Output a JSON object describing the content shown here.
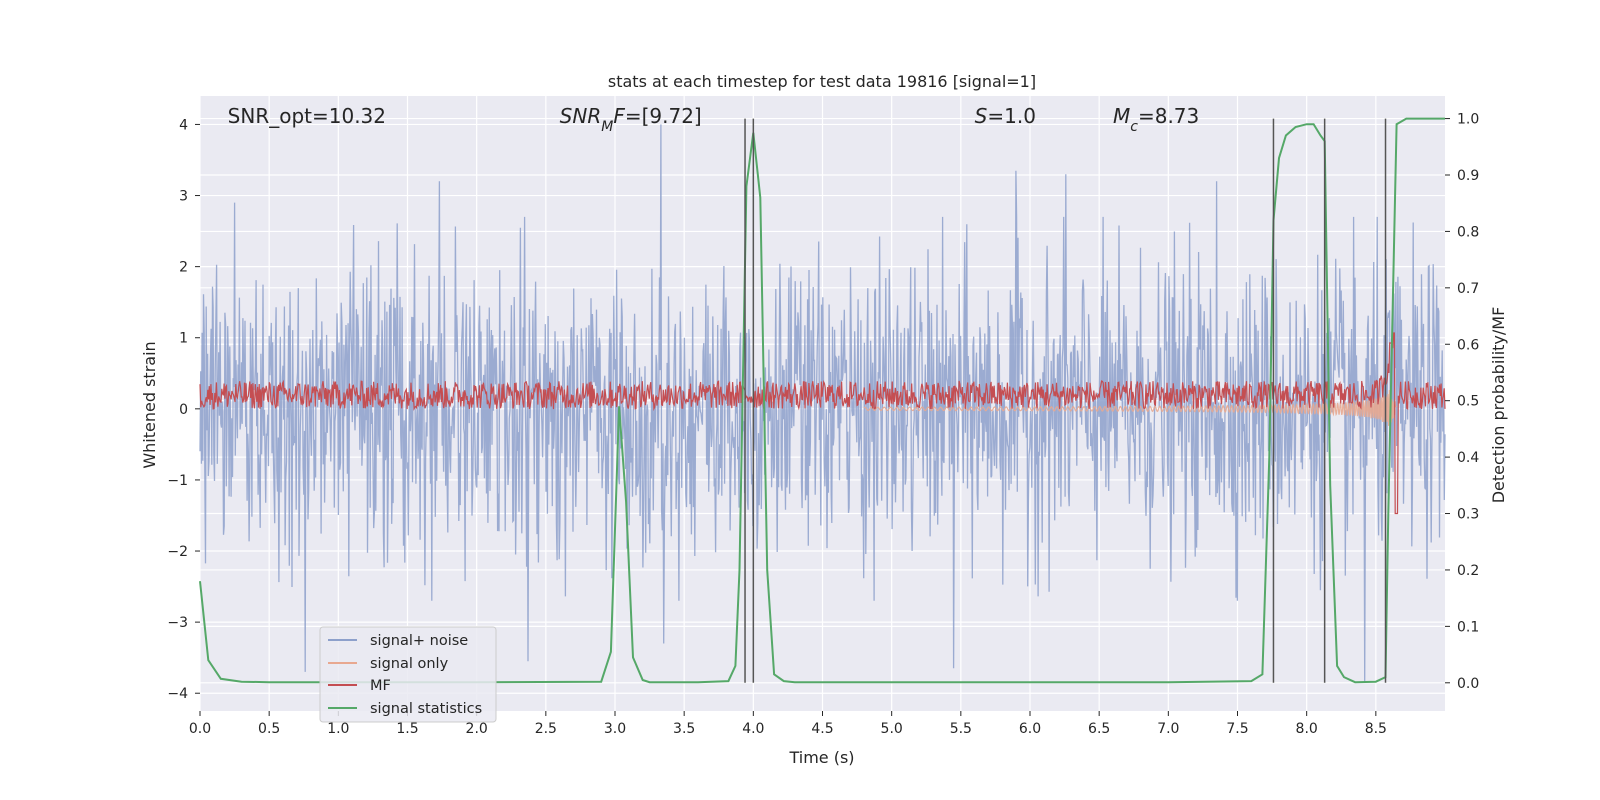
{
  "chart_data": {
    "type": "line",
    "title": "stats at each timestep for test data 19816 [signal=1]",
    "xlabel": "Time (s)",
    "ylabel_left": "Whitened strain",
    "ylabel_right": "Detection probability/MF",
    "xlim": [
      0,
      9
    ],
    "ylim_left": [
      -4.25,
      4.4
    ],
    "ylim_right": [
      -0.05,
      1.04
    ],
    "x_ticks": [
      0.0,
      0.5,
      1.0,
      1.5,
      2.0,
      2.5,
      3.0,
      3.5,
      4.0,
      4.5,
      5.0,
      5.5,
      6.0,
      6.5,
      7.0,
      7.5,
      8.0,
      8.5
    ],
    "x_tick_labels": [
      "0.0",
      "0.5",
      "1.0",
      "1.5",
      "2.0",
      "2.5",
      "3.0",
      "3.5",
      "4.0",
      "4.5",
      "5.0",
      "5.5",
      "6.0",
      "6.5",
      "7.0",
      "7.5",
      "8.0",
      "8.5"
    ],
    "left_ticks": [
      -4,
      -3,
      -2,
      -1,
      0,
      1,
      2,
      3,
      4
    ],
    "left_tick_labels": [
      "−4",
      "−3",
      "−2",
      "−1",
      "0",
      "1",
      "2",
      "3",
      "4"
    ],
    "right_ticks": [
      0.0,
      0.1,
      0.2,
      0.3,
      0.4,
      0.5,
      0.6,
      0.7,
      0.8,
      0.9,
      1.0
    ],
    "right_tick_labels": [
      "0.0",
      "0.1",
      "0.2",
      "0.3",
      "0.4",
      "0.5",
      "0.6",
      "0.7",
      "0.8",
      "0.9",
      "1.0"
    ],
    "grid": true,
    "annotations": [
      {
        "id": "snr-opt",
        "parts": [
          {
            "t": "SNR_opt=10.32",
            "i": false
          }
        ],
        "x": 0.2,
        "y": 4.12
      },
      {
        "id": "snr-mf",
        "parts": [
          {
            "t": "SNR",
            "i": true
          },
          {
            "t": "M",
            "i": true,
            "sub": true
          },
          {
            "t": "F",
            "i": true
          },
          {
            "t": "=[9.72]",
            "i": false
          }
        ],
        "x": 2.6,
        "y": 4.12
      },
      {
        "id": "s-value",
        "parts": [
          {
            "t": "S",
            "i": true
          },
          {
            "t": "=1.0",
            "i": false
          }
        ],
        "x": 5.6,
        "y": 4.12
      },
      {
        "id": "mc-value",
        "parts": [
          {
            "t": "M",
            "i": true
          },
          {
            "t": "c",
            "i": true,
            "sub": true
          },
          {
            "t": "=8.73",
            "i": false
          }
        ],
        "x": 6.6,
        "y": 4.12
      }
    ],
    "vlines": [
      3.94,
      4.0,
      7.76,
      8.13,
      8.57
    ],
    "vline_range": [
      0.0,
      1.0
    ],
    "series": [
      {
        "name": "signal+ noise",
        "axis": "left",
        "color": "#8da0cb",
        "kind": "noise",
        "x_range": [
          0,
          9
        ],
        "n": 1800,
        "sigma": 1.0,
        "peaks": [
          {
            "x": 3.33,
            "y": 4.0
          },
          {
            "x": 0.25,
            "y": 2.9
          },
          {
            "x": 1.73,
            "y": 3.2
          },
          {
            "x": 5.9,
            "y": 3.35
          },
          {
            "x": 6.26,
            "y": 3.3
          },
          {
            "x": 7.35,
            "y": 3.2
          },
          {
            "x": 2.37,
            "y": -3.55
          },
          {
            "x": 0.76,
            "y": -3.7
          },
          {
            "x": 5.45,
            "y": -3.65
          },
          {
            "x": 8.42,
            "y": -3.85
          },
          {
            "x": 3.35,
            "y": -3.3
          }
        ]
      },
      {
        "name": "signal only",
        "axis": "left",
        "color": "#e8a890",
        "kind": "chirp",
        "t_start": 4.8,
        "t_merge": 8.6,
        "amp_max": 1.35
      },
      {
        "name": "MF",
        "axis": "right",
        "color": "#c44e52",
        "kind": "mf",
        "base": 0.5,
        "noise_amp": 0.025,
        "peak_x": 8.63,
        "peak_y": 0.62,
        "low_y": 0.3
      },
      {
        "name": "signal statistics",
        "axis": "right",
        "color": "#55a868",
        "kind": "line",
        "x": [
          0.0,
          0.06,
          0.15,
          0.3,
          0.5,
          1.0,
          2.0,
          2.9,
          2.97,
          3.03,
          3.08,
          3.13,
          3.2,
          3.25,
          3.33,
          3.6,
          3.82,
          3.87,
          3.9,
          3.95,
          4.0,
          4.05,
          4.1,
          4.15,
          4.22,
          4.3,
          5.0,
          6.0,
          7.0,
          7.6,
          7.68,
          7.73,
          7.76,
          7.8,
          7.85,
          7.92,
          8.0,
          8.05,
          8.1,
          8.13,
          8.17,
          8.22,
          8.27,
          8.35,
          8.5,
          8.57,
          8.59,
          8.65,
          8.72,
          8.8,
          9.0
        ],
        "y": [
          0.18,
          0.04,
          0.007,
          0.002,
          0.001,
          0.001,
          0.001,
          0.002,
          0.055,
          0.49,
          0.32,
          0.045,
          0.005,
          0.001,
          0.001,
          0.001,
          0.003,
          0.03,
          0.2,
          0.88,
          0.975,
          0.86,
          0.2,
          0.015,
          0.003,
          0.001,
          0.001,
          0.001,
          0.001,
          0.003,
          0.015,
          0.4,
          0.82,
          0.93,
          0.97,
          0.985,
          0.99,
          0.99,
          0.97,
          0.96,
          0.35,
          0.03,
          0.01,
          0.001,
          0.002,
          0.01,
          0.3,
          0.99,
          1.0,
          1.0,
          1.0
        ]
      }
    ],
    "legend": {
      "position": "lower-left",
      "entries": [
        {
          "label": "signal+ noise",
          "color": "#8da0cb"
        },
        {
          "label": "signal only",
          "color": "#e8a890"
        },
        {
          "label": "MF",
          "color": "#c44e52"
        },
        {
          "label": "signal statistics",
          "color": "#55a868"
        }
      ]
    }
  }
}
